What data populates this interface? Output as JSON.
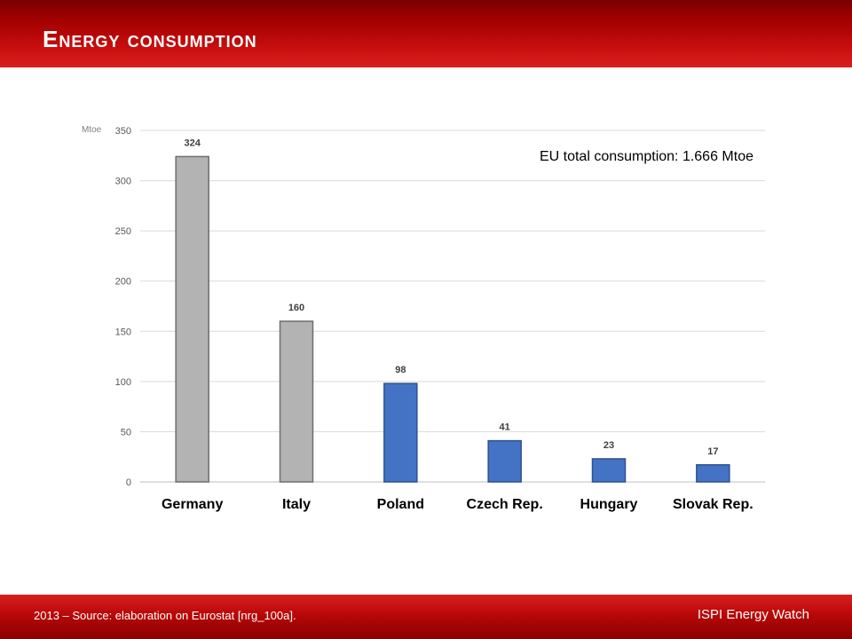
{
  "header": {
    "title": "Energy consumption"
  },
  "footer": {
    "source": "2013 – Source: elaboration on Eurostat [nrg_100a].",
    "brand": "ISPI Energy Watch"
  },
  "annotation": "EU total consumption:  1.666 Mtoe",
  "chart_data": {
    "type": "bar",
    "title": "",
    "xlabel": "",
    "ylabel": "Mtoe",
    "ylim": [
      0,
      350
    ],
    "yticks": [
      0,
      50,
      100,
      150,
      200,
      250,
      300,
      350
    ],
    "grid": true,
    "categories": [
      "Germany",
      "Italy",
      "Poland",
      "Czech Rep.",
      "Hungary",
      "Slovak Rep."
    ],
    "values": [
      324,
      160,
      98,
      41,
      23,
      17
    ],
    "bar_colors": [
      "#b3b3b3",
      "#b3b3b3",
      "#4472c4",
      "#4472c4",
      "#4472c4",
      "#4472c4"
    ]
  }
}
